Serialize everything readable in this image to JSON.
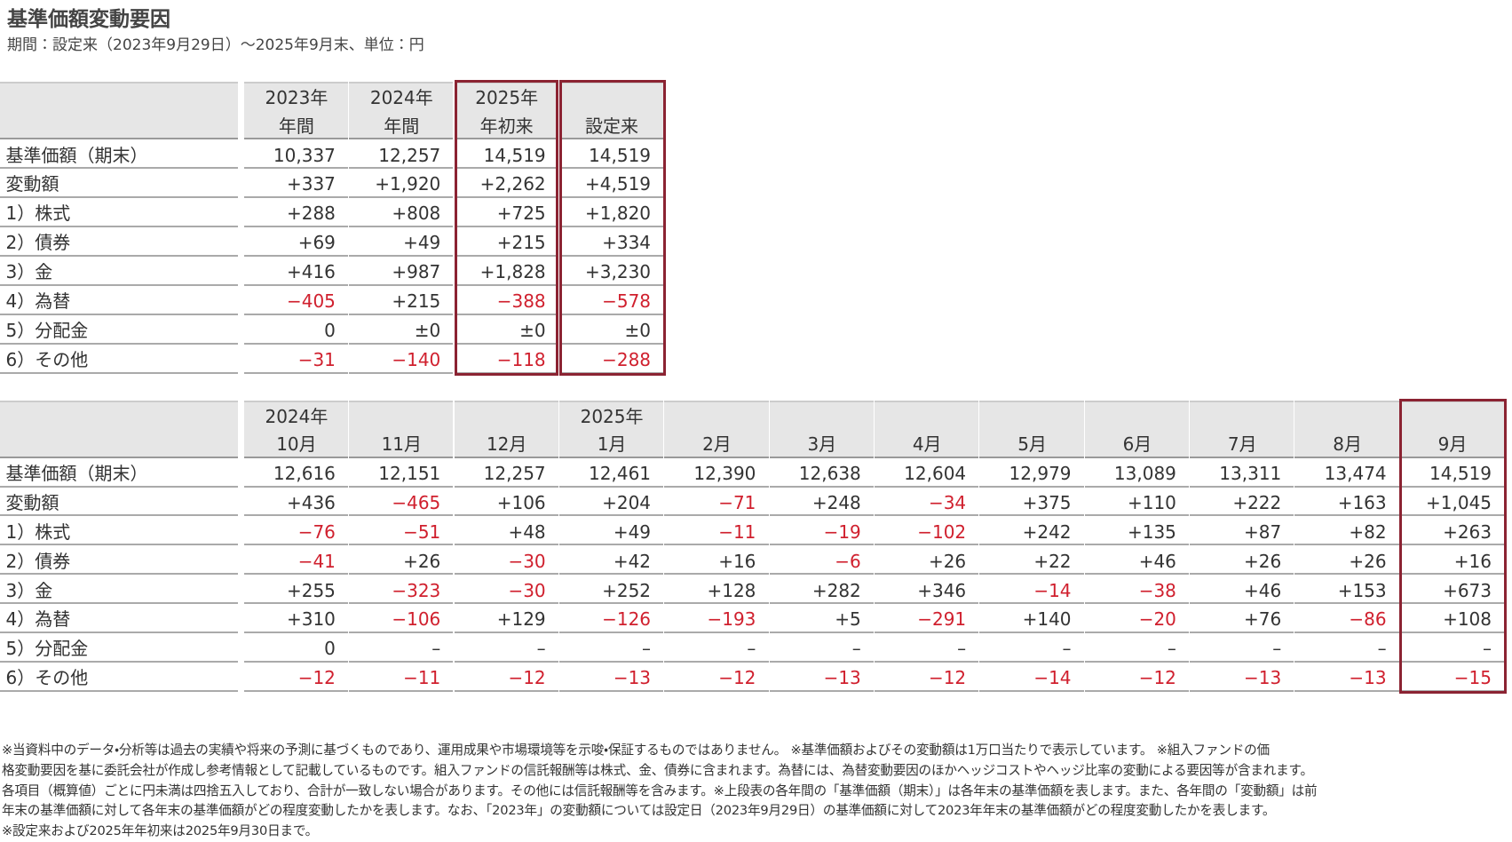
{
  "title": "基準価額変動要因",
  "subtitle": "期間：設定来（2023年9月29日）～2025年9月末、単位：円",
  "table1": {
    "columns": [
      [
        "2023年",
        "年間"
      ],
      [
        "2024年",
        "年間"
      ],
      [
        "2025年",
        "年初来"
      ],
      [
        "設定来"
      ]
    ],
    "rows": [
      {
        "label": "基準価額（期末）",
        "values": [
          "10,337",
          "12,257",
          "14,519",
          "14,519"
        ]
      },
      {
        "label": "変動額",
        "values": [
          "+337",
          "+1,920",
          "+2,262",
          "+4,519"
        ]
      },
      {
        "label": "1）株式",
        "values": [
          "+288",
          "+808",
          "+725",
          "+1,820"
        ]
      },
      {
        "label": "2）債券",
        "values": [
          "+69",
          "+49",
          "+215",
          "+334"
        ]
      },
      {
        "label": "3）金",
        "values": [
          "+416",
          "+987",
          "+1,828",
          "+3,230"
        ]
      },
      {
        "label": "4）為替",
        "values": [
          "−405",
          "+215",
          "−388",
          "−578"
        ]
      },
      {
        "label": "5）分配金",
        "values": [
          "0",
          "±0",
          "±0",
          "±0"
        ]
      },
      {
        "label": "6）その他",
        "values": [
          "−31",
          "−140",
          "−118",
          "−288"
        ]
      }
    ]
  },
  "table2": {
    "columns": [
      {
        "year": "2024年",
        "month": "10月"
      },
      {
        "month": "11月"
      },
      {
        "month": "12月"
      },
      {
        "year": "2025年",
        "month": "1月"
      },
      {
        "month": "2月"
      },
      {
        "month": "3月"
      },
      {
        "month": "4月"
      },
      {
        "month": "5月"
      },
      {
        "month": "6月"
      },
      {
        "month": "7月"
      },
      {
        "month": "8月"
      },
      {
        "month": "9月"
      }
    ],
    "rows": [
      {
        "label": "基準価額（期末）",
        "values": [
          "12,616",
          "12,151",
          "12,257",
          "12,461",
          "12,390",
          "12,638",
          "12,604",
          "12,979",
          "13,089",
          "13,311",
          "13,474",
          "14,519"
        ]
      },
      {
        "label": "変動額",
        "values": [
          "+436",
          "−465",
          "+106",
          "+204",
          "−71",
          "+248",
          "−34",
          "+375",
          "+110",
          "+222",
          "+163",
          "+1,045"
        ]
      },
      {
        "label": "1）株式",
        "values": [
          "−76",
          "−51",
          "+48",
          "+49",
          "−11",
          "−19",
          "−102",
          "+242",
          "+135",
          "+87",
          "+82",
          "+263"
        ]
      },
      {
        "label": "2）債券",
        "values": [
          "−41",
          "+26",
          "−30",
          "+42",
          "+16",
          "−6",
          "+26",
          "+22",
          "+46",
          "+26",
          "+26",
          "+16"
        ]
      },
      {
        "label": "3）金",
        "values": [
          "+255",
          "−323",
          "−30",
          "+252",
          "+128",
          "+282",
          "+346",
          "−14",
          "−38",
          "+46",
          "+153",
          "+673"
        ]
      },
      {
        "label": "4）為替",
        "values": [
          "+310",
          "−106",
          "+129",
          "−126",
          "−193",
          "+5",
          "−291",
          "+140",
          "−20",
          "+76",
          "−86",
          "+108"
        ]
      },
      {
        "label": "5）分配金",
        "values": [
          "0",
          "–",
          "–",
          "–",
          "–",
          "–",
          "–",
          "–",
          "–",
          "–",
          "–",
          "–"
        ]
      },
      {
        "label": "6）その他",
        "values": [
          "−12",
          "−11",
          "−12",
          "−13",
          "−12",
          "−13",
          "−12",
          "−14",
          "−12",
          "−13",
          "−13",
          "−15"
        ]
      }
    ]
  },
  "notes": [
    "※当資料中のデータ・分析等は過去の実績や将来の予測に基づくものであり、運用成果や市場環境等を示唆・保証するものではありません。 ※基準価額およびその変動額は1万口当たりで表示しています。 ※組入ファンドの価",
    "格変動要因を基に委託会社が作成し参考情報として記載しているものです。組入ファンドの信託報酬等は株式、金、債券に含まれます。為替には、為替変動要因のほかヘッジコストやヘッジ比率の変動による要因等が含まれます。",
    "各項目（概算値）ごとに円未満は四捨五入しており、合計が一致しない場合があります。その他には信託報酬等を含みます。※上段表の各年間の「基準価額（期末）」は各年末の基準価額を表します。また、各年間の「変動額」は前",
    "年末の基準価額に対して各年末の基準価額がどの程度変動したかを表します。なお、「2023年」の変動額については設定日（2023年9月29日）の基準価額に対して2023年年末の基準価額がどの程度変動したかを表します。",
    "※設定来および2025年年初来は2025年9月30日まで。"
  ]
}
